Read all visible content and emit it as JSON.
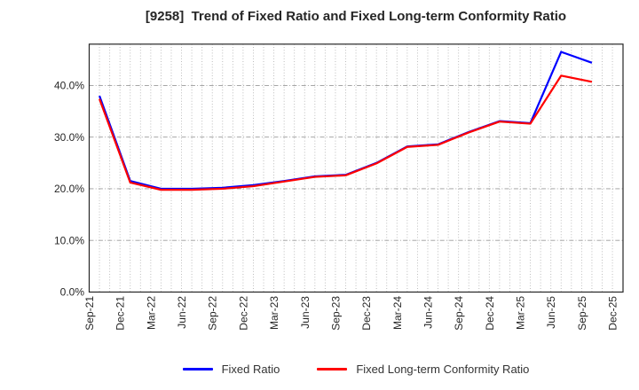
{
  "chart_data": {
    "type": "line",
    "title": "[9258]  Trend of Fixed Ratio and Fixed Long-term Conformity Ratio",
    "x_tick_labels": [
      "Sep-21",
      "Dec-21",
      "Mar-22",
      "Jun-22",
      "Sep-22",
      "Dec-22",
      "Mar-23",
      "Jun-23",
      "Sep-23",
      "Dec-23",
      "Mar-24",
      "Jun-24",
      "Sep-24",
      "Dec-24",
      "Mar-25",
      "Jun-25",
      "Sep-25",
      "Dec-25"
    ],
    "categories": [
      "Sep-21",
      "Dec-21",
      "Mar-22",
      "Jun-22",
      "Sep-22",
      "Dec-22",
      "Mar-23",
      "Jun-23",
      "Sep-23",
      "Dec-23",
      "Mar-24",
      "Jun-24",
      "Sep-24",
      "Dec-24",
      "Mar-25",
      "Jun-25",
      "Sep-25"
    ],
    "series": [
      {
        "name": "Fixed Ratio",
        "color": "#0000ff",
        "values": [
          38.0,
          21.5,
          20.0,
          20.0,
          20.2,
          20.7,
          21.5,
          22.4,
          22.7,
          25.0,
          28.2,
          28.6,
          31.0,
          33.1,
          32.7,
          46.5,
          44.4
        ]
      },
      {
        "name": "Fixed Long-term Conformity Ratio",
        "color": "#ff0000",
        "values": [
          37.4,
          21.2,
          19.8,
          19.8,
          20.0,
          20.5,
          21.4,
          22.3,
          22.6,
          24.9,
          28.1,
          28.5,
          30.9,
          33.0,
          32.6,
          41.9,
          40.7
        ]
      }
    ],
    "ylabel": "",
    "xlabel": "",
    "yticks": [
      0,
      10,
      20,
      30,
      40
    ],
    "ytick_labels": [
      "0.0%",
      "10.0%",
      "20.0%",
      "30.0%",
      "40.0%"
    ],
    "ylim": [
      0,
      48
    ],
    "grid": "on",
    "minor_x_grid": "monthly",
    "legend_position": "bottom",
    "axis_color": "#262626",
    "grid_color": "#b5b5b5"
  }
}
